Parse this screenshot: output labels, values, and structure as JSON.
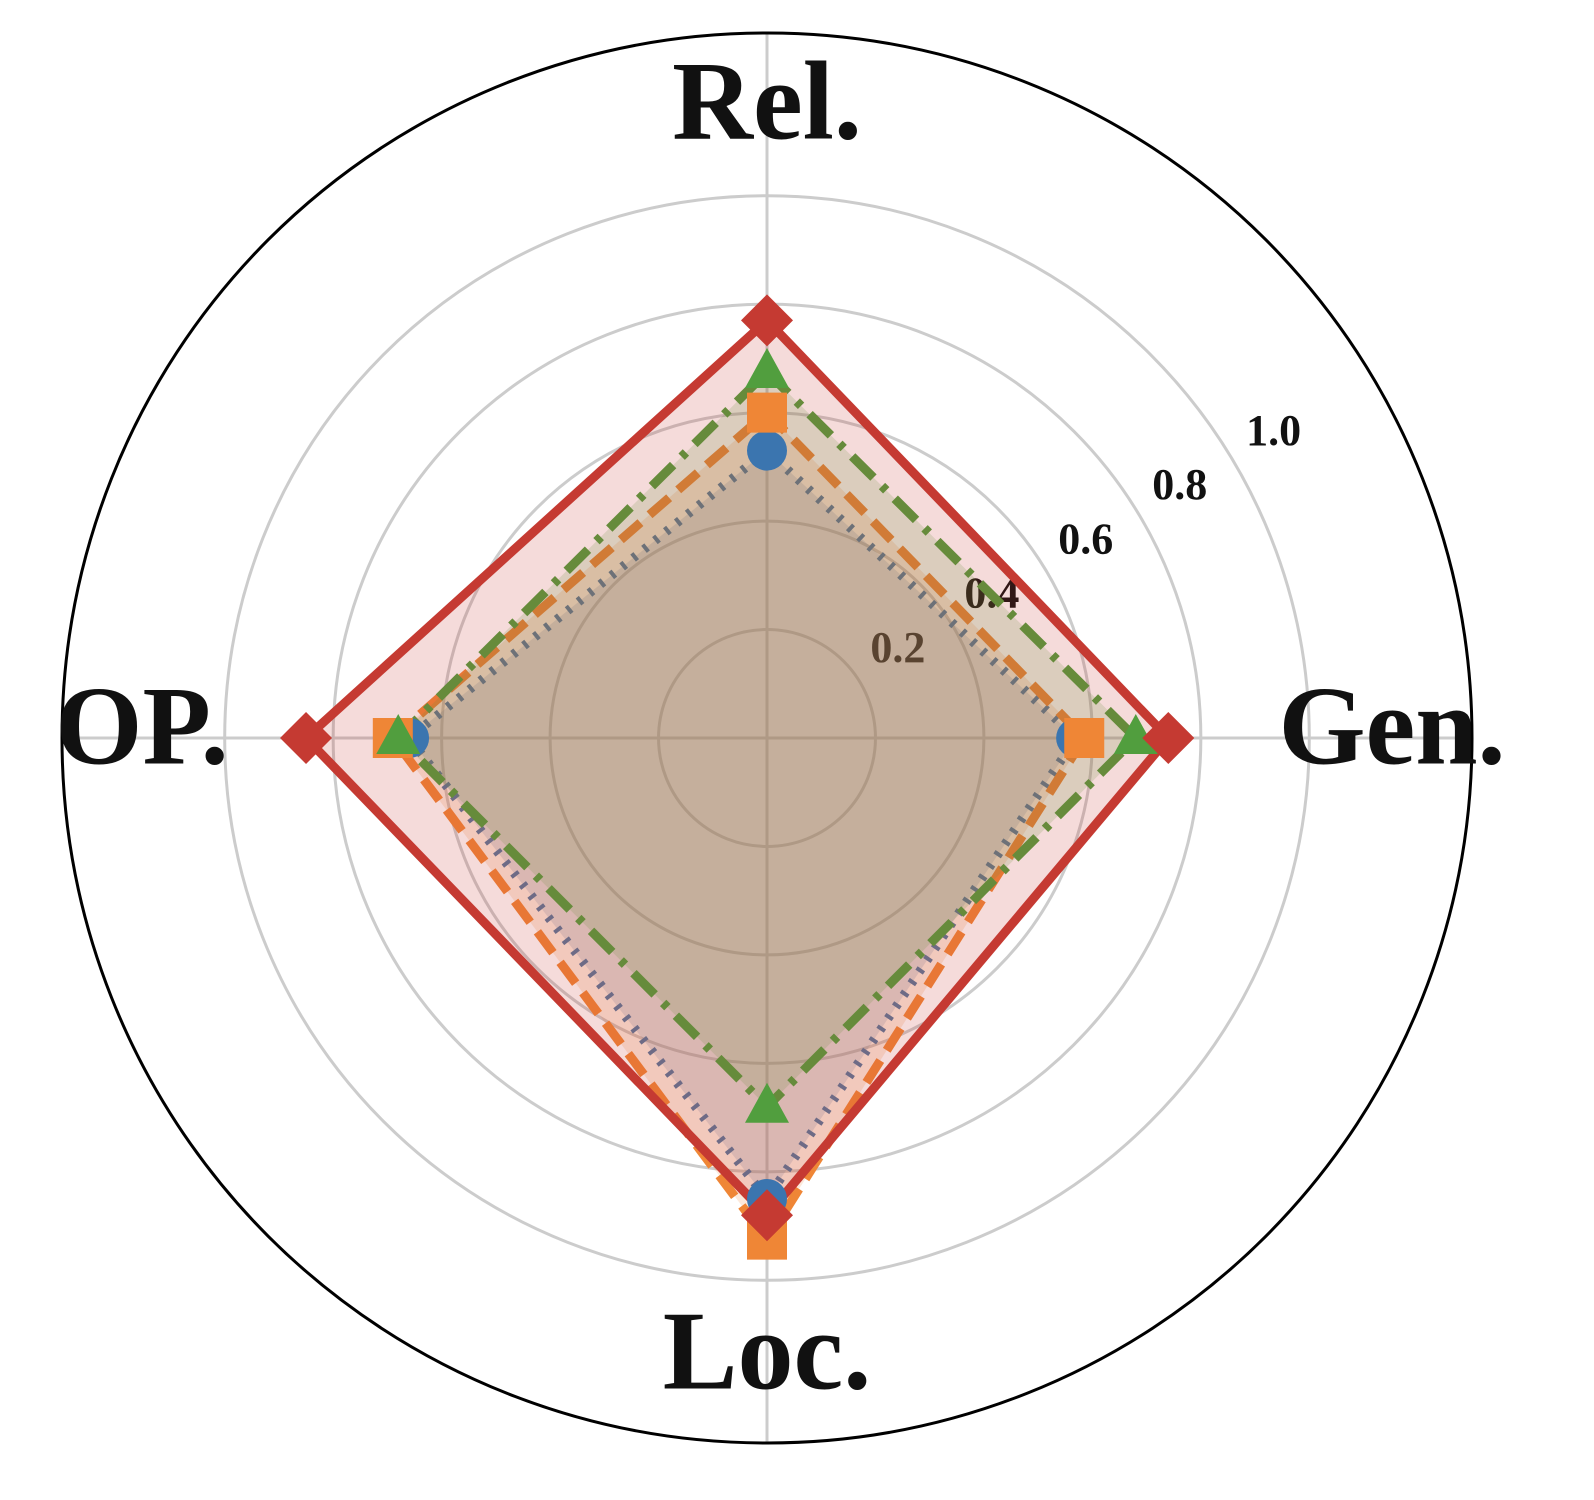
{
  "chart_data": {
    "type": "radar",
    "categories": [
      "Rel.",
      "Gen.",
      "Loc.",
      "OP."
    ],
    "series": [
      {
        "color": "#3b75af",
        "linestyle": "dotted",
        "marker": "circle",
        "values": [
          0.53,
          0.57,
          0.85,
          0.66
        ]
      },
      {
        "color": "#ef8636",
        "linestyle": "dashed",
        "marker": "square",
        "values": [
          0.6,
          0.585,
          0.925,
          0.69
        ]
      },
      {
        "color": "#519e3e",
        "linestyle": "dashdot",
        "marker": "triangle",
        "values": [
          0.675,
          0.68,
          0.68,
          0.68
        ]
      },
      {
        "color": "#c53a32",
        "linestyle": "solid",
        "marker": "diamond",
        "values": [
          0.77,
          0.74,
          0.88,
          0.85
        ]
      }
    ],
    "ylim": [
      0,
      1.3
    ],
    "yticks": [
      0.2,
      0.4,
      0.6,
      0.8,
      {
        "value": 1.0,
        "label": "1.0"
      }
    ],
    "grid": true
  }
}
